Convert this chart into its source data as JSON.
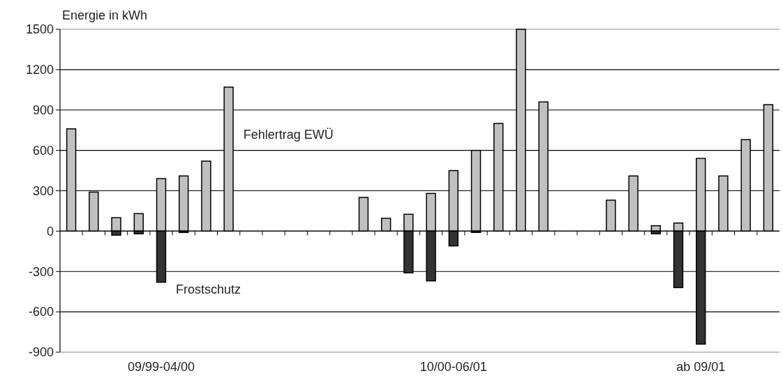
{
  "chart_data": {
    "type": "bar",
    "ylabel": "Energie in kWh",
    "categories": [
      null,
      null,
      null,
      null,
      "09/99-04/00",
      null,
      null,
      null,
      null,
      null,
      null,
      null,
      null,
      null,
      null,
      null,
      null,
      "10/00-06/01",
      null,
      null,
      null,
      null,
      null,
      null,
      null,
      null,
      null,
      null,
      "ab 09/01",
      null,
      null,
      null
    ],
    "series": [
      {
        "name": "Fehlertrag EWÜ",
        "color": "#c0c0c0",
        "values": [
          760,
          290,
          100,
          130,
          390,
          410,
          520,
          1070,
          null,
          null,
          null,
          null,
          null,
          250,
          95,
          125,
          280,
          450,
          600,
          800,
          1500,
          960,
          null,
          null,
          230,
          410,
          40,
          60,
          540,
          410,
          680,
          940
        ]
      },
      {
        "name": "Frostschutz",
        "color": "#333333",
        "values": [
          null,
          null,
          -30,
          -20,
          -380,
          -10,
          null,
          null,
          null,
          null,
          null,
          null,
          null,
          null,
          null,
          -310,
          -370,
          -110,
          -10,
          null,
          null,
          null,
          null,
          null,
          null,
          null,
          -20,
          -420,
          -840,
          null,
          null,
          null
        ]
      }
    ],
    "stacked": true,
    "ylim": [
      -900,
      1500
    ],
    "yticks": [
      -900,
      -600,
      -300,
      0,
      300,
      600,
      900,
      1200,
      1500
    ],
    "grid": "y"
  }
}
